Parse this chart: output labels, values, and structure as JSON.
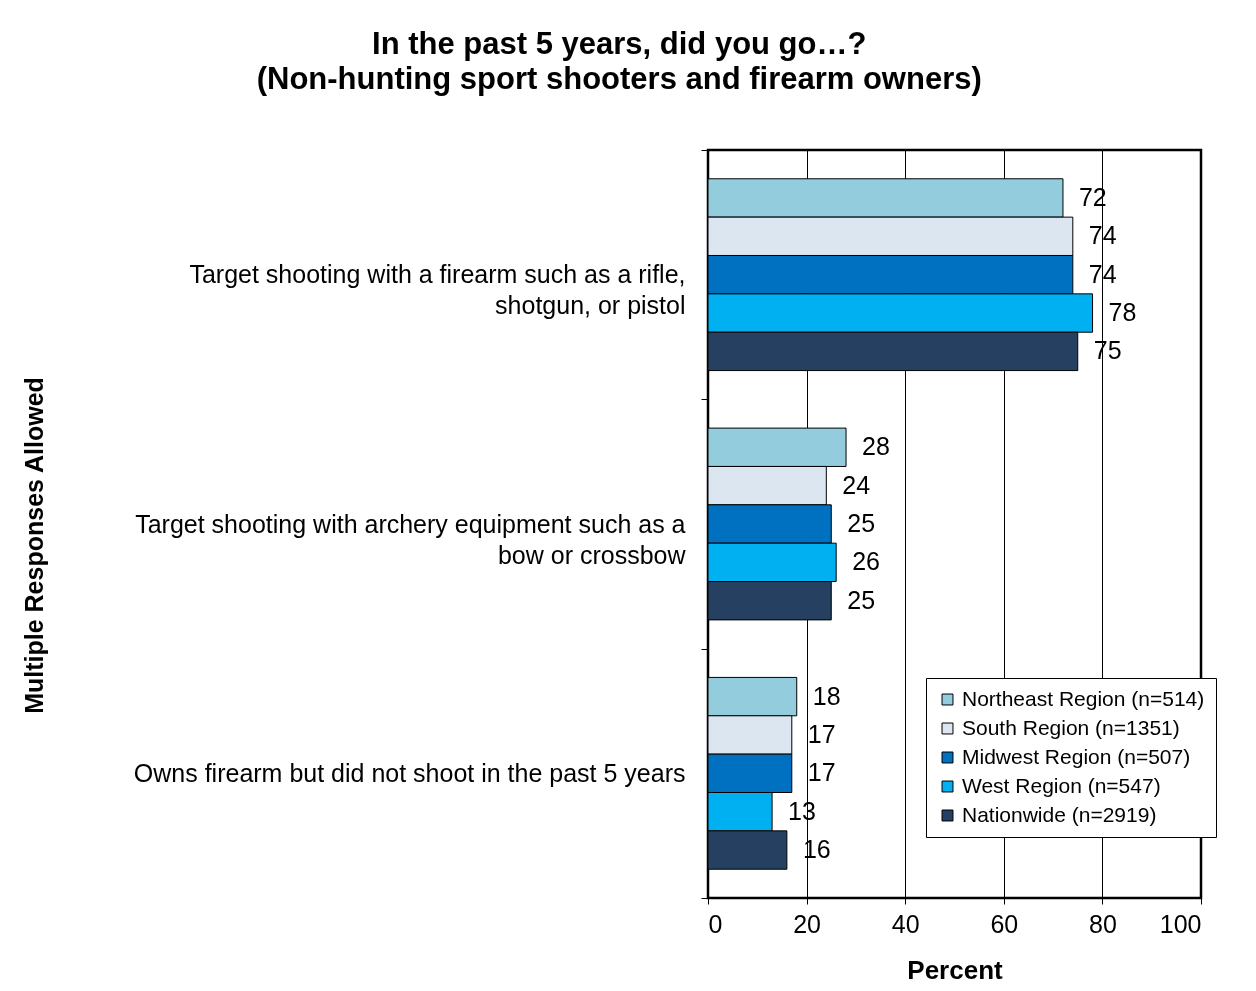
{
  "chart_data": {
    "type": "bar",
    "orientation": "horizontal",
    "title": "In the past 5 years, did you go…?",
    "subtitle": "(Non-hunting sport shooters and firearm owners)",
    "xlabel": "Percent",
    "ylabel": "Multiple Responses Allowed",
    "categories": [
      "Target shooting with a firearm such as a rifle, shotgun, or pistol",
      "Target shooting with archery equipment such as a bow or crossbow",
      "Owns firearm but did not shoot in the past 5 years"
    ],
    "series": [
      {
        "name": "Northeast Region (n=514)",
        "color": "#93cddd",
        "values": [
          72,
          28,
          18
        ]
      },
      {
        "name": "South Region (n=1351)",
        "color": "#dce6f1",
        "values": [
          74,
          24,
          17
        ]
      },
      {
        "name": "Midwest Region (n=507)",
        "color": "#0070c0",
        "values": [
          74,
          25,
          17
        ]
      },
      {
        "name": "West Region (n=547)",
        "color": "#00b0f0",
        "values": [
          78,
          26,
          13
        ]
      },
      {
        "name": "Nationwide (n=2919)",
        "color": "#254061",
        "values": [
          75,
          25,
          16
        ]
      }
    ],
    "xlim": [
      0,
      100
    ],
    "xticks": [
      0,
      20,
      40,
      60,
      80,
      100
    ],
    "grid": "x",
    "legend": "bottom right",
    "data_labels": true
  }
}
